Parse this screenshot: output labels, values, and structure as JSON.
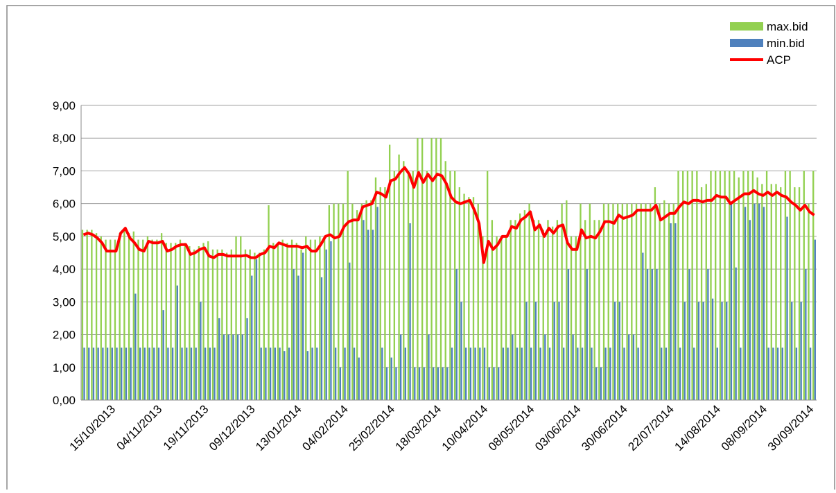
{
  "chart_data": {
    "type": "bar_line",
    "categories": [
      null,
      null,
      null,
      null,
      null,
      null,
      null,
      "15/10/2013",
      null,
      null,
      null,
      null,
      null,
      null,
      null,
      null,
      null,
      "04/11/2013",
      null,
      null,
      null,
      null,
      null,
      null,
      null,
      null,
      null,
      "19/11/2013",
      null,
      null,
      null,
      null,
      null,
      null,
      null,
      null,
      null,
      "09/12/2013",
      null,
      null,
      null,
      null,
      null,
      null,
      null,
      null,
      null,
      "13/01/2014",
      null,
      null,
      null,
      null,
      null,
      null,
      null,
      null,
      null,
      "04/02/2014",
      null,
      null,
      null,
      null,
      null,
      null,
      null,
      null,
      null,
      "25/02/2014",
      null,
      null,
      null,
      null,
      null,
      null,
      null,
      null,
      null,
      "18/03/2014",
      null,
      null,
      null,
      null,
      null,
      null,
      null,
      null,
      null,
      "10/04/2014",
      null,
      null,
      null,
      null,
      null,
      null,
      null,
      null,
      null,
      "08/05/2014",
      null,
      null,
      null,
      null,
      null,
      null,
      null,
      null,
      null,
      "03/06/2014",
      null,
      null,
      null,
      null,
      null,
      null,
      null,
      null,
      null,
      "30/06/2014",
      null,
      null,
      null,
      null,
      null,
      null,
      null,
      null,
      null,
      "22/07/2014",
      null,
      null,
      null,
      null,
      null,
      null,
      null,
      null,
      null,
      "14/08/2014",
      null,
      null,
      null,
      null,
      null,
      null,
      null,
      null,
      null,
      "08/09/2014",
      null,
      null,
      null,
      null,
      null,
      null,
      null,
      null,
      null,
      "30/09/2014"
    ],
    "series": [
      {
        "name": "max.bid",
        "kind": "bar",
        "color": "#92d050",
        "values": [
          5.2,
          5.2,
          5.2,
          5.1,
          5.0,
          4.9,
          4.9,
          4.9,
          5.1,
          5.2,
          5.1,
          5.15,
          4.9,
          4.9,
          5.0,
          4.9,
          4.9,
          5.1,
          4.8,
          4.8,
          4.8,
          4.9,
          4.8,
          4.7,
          4.6,
          4.7,
          4.8,
          4.85,
          4.6,
          4.6,
          4.6,
          4.5,
          4.6,
          5.0,
          5.0,
          4.6,
          4.6,
          4.5,
          4.5,
          4.6,
          5.95,
          4.8,
          4.8,
          4.9,
          4.8,
          4.9,
          4.8,
          4.6,
          5.0,
          4.9,
          4.9,
          5.0,
          5.0,
          5.95,
          6.0,
          6.0,
          6.0,
          7.0,
          6.0,
          5.8,
          6.0,
          6.1,
          6.1,
          6.8,
          6.5,
          6.5,
          7.8,
          7.0,
          7.5,
          7.3,
          7.0,
          7.0,
          8.0,
          8.0,
          7.0,
          8.0,
          8.0,
          8.0,
          7.3,
          7.0,
          7.0,
          6.5,
          6.3,
          6.2,
          6.2,
          6.0,
          5.0,
          7.0,
          5.5,
          5.0,
          5.0,
          5.0,
          5.5,
          5.5,
          5.7,
          5.8,
          6.0,
          5.5,
          5.5,
          5.2,
          5.5,
          5.3,
          5.5,
          6.0,
          6.1,
          5.0,
          5.0,
          6.0,
          5.5,
          6.0,
          5.5,
          5.5,
          6.0,
          6.0,
          6.0,
          6.0,
          6.0,
          6.0,
          6.0,
          6.0,
          6.0,
          6.0,
          6.0,
          6.5,
          6.0,
          6.1,
          6.0,
          6.0,
          7.0,
          7.0,
          7.0,
          7.0,
          7.0,
          6.5,
          6.6,
          7.0,
          7.0,
          7.0,
          7.0,
          7.0,
          7.0,
          6.8,
          7.0,
          7.0,
          7.0,
          6.8,
          6.6,
          7.0,
          6.6,
          6.6,
          6.5,
          7.0,
          7.0,
          6.5,
          6.5,
          7.0,
          6.0,
          7.0
        ]
      },
      {
        "name": "min.bid",
        "kind": "bar",
        "color": "#4f81bd",
        "values": [
          1.6,
          1.6,
          1.6,
          1.6,
          1.6,
          1.6,
          1.6,
          1.6,
          1.6,
          1.6,
          1.6,
          3.25,
          1.6,
          1.6,
          1.6,
          1.6,
          1.6,
          2.75,
          1.6,
          1.6,
          3.5,
          1.6,
          1.6,
          1.6,
          1.6,
          3.0,
          1.6,
          1.6,
          1.6,
          2.5,
          2.0,
          2.0,
          2.0,
          2.0,
          2.0,
          2.5,
          3.8,
          4.3,
          1.6,
          1.6,
          1.6,
          1.6,
          1.6,
          1.5,
          1.6,
          4.0,
          3.8,
          4.5,
          1.5,
          1.6,
          1.6,
          3.75,
          4.6,
          4.85,
          1.6,
          1.0,
          1.6,
          4.2,
          1.6,
          1.3,
          5.5,
          5.2,
          5.2,
          5.9,
          1.6,
          1.0,
          1.3,
          1.0,
          2.0,
          1.6,
          5.4,
          1.0,
          1.0,
          1.0,
          2.0,
          1.0,
          1.0,
          1.0,
          1.0,
          1.6,
          4.0,
          3.0,
          1.6,
          1.6,
          1.6,
          1.6,
          1.6,
          1.0,
          1.0,
          1.0,
          1.6,
          1.6,
          2.0,
          1.6,
          1.6,
          3.0,
          1.6,
          3.0,
          1.6,
          2.0,
          1.6,
          3.0,
          3.0,
          1.6,
          4.0,
          2.0,
          1.6,
          1.6,
          4.0,
          1.6,
          1.0,
          1.0,
          1.6,
          1.6,
          3.0,
          3.0,
          1.6,
          2.0,
          2.0,
          1.6,
          4.5,
          4.0,
          4.0,
          4.0,
          1.6,
          1.6,
          5.4,
          5.4,
          1.6,
          3.0,
          4.0,
          1.6,
          3.0,
          3.0,
          4.0,
          3.1,
          1.6,
          3.0,
          3.0,
          6.0,
          4.05,
          1.6,
          5.9,
          5.5,
          6.0,
          6.0,
          5.9,
          1.6,
          1.6,
          1.6,
          1.6,
          5.6,
          3.0,
          1.6,
          3.0,
          4.0,
          1.6,
          4.9
        ]
      },
      {
        "name": "ACP",
        "kind": "line",
        "color": "#ff0000",
        "values": [
          5.05,
          5.1,
          5.05,
          4.95,
          4.8,
          4.55,
          4.55,
          4.55,
          5.1,
          5.25,
          4.95,
          4.8,
          4.6,
          4.55,
          4.85,
          4.8,
          4.8,
          4.85,
          4.55,
          4.6,
          4.7,
          4.75,
          4.75,
          4.45,
          4.5,
          4.6,
          4.65,
          4.4,
          4.35,
          4.45,
          4.45,
          4.4,
          4.4,
          4.4,
          4.4,
          4.42,
          4.35,
          4.35,
          4.45,
          4.5,
          4.7,
          4.65,
          4.8,
          4.75,
          4.7,
          4.7,
          4.7,
          4.65,
          4.7,
          4.55,
          4.55,
          4.75,
          5.0,
          5.05,
          4.95,
          5.0,
          5.3,
          5.45,
          5.5,
          5.5,
          5.9,
          5.95,
          6.0,
          6.35,
          6.3,
          6.2,
          6.7,
          6.75,
          6.95,
          7.1,
          6.9,
          6.5,
          6.95,
          6.65,
          6.9,
          6.7,
          6.9,
          6.85,
          6.6,
          6.2,
          6.05,
          6.0,
          6.05,
          6.1,
          5.8,
          5.4,
          4.2,
          4.85,
          4.6,
          4.75,
          5.0,
          5.0,
          5.3,
          5.25,
          5.5,
          5.6,
          5.75,
          5.2,
          5.35,
          5.0,
          5.25,
          5.1,
          5.3,
          5.35,
          4.8,
          4.6,
          4.6,
          5.2,
          4.95,
          5.0,
          4.95,
          5.15,
          5.45,
          5.45,
          5.4,
          5.65,
          5.55,
          5.6,
          5.65,
          5.8,
          5.8,
          5.8,
          5.8,
          5.95,
          5.5,
          5.6,
          5.7,
          5.7,
          5.9,
          6.05,
          6.0,
          6.1,
          6.1,
          6.05,
          6.1,
          6.1,
          6.25,
          6.2,
          6.2,
          6.0,
          6.1,
          6.2,
          6.3,
          6.3,
          6.4,
          6.3,
          6.25,
          6.35,
          6.25,
          6.35,
          6.25,
          6.2,
          6.05,
          5.95,
          5.8,
          5.95,
          5.75,
          5.65
        ]
      }
    ],
    "ylim": [
      0,
      9
    ],
    "yticks": [
      {
        "value": 0,
        "label": "0,00"
      },
      {
        "value": 1,
        "label": "1,00"
      },
      {
        "value": 2,
        "label": "2,00"
      },
      {
        "value": 3,
        "label": "3,00"
      },
      {
        "value": 4,
        "label": "4,00"
      },
      {
        "value": 5,
        "label": "5,00"
      },
      {
        "value": 6,
        "label": "6,00"
      },
      {
        "value": 7,
        "label": "7,00"
      },
      {
        "value": 8,
        "label": "8,00"
      },
      {
        "value": 9,
        "label": "9,00"
      }
    ],
    "grid": true,
    "legend": "top-right"
  }
}
